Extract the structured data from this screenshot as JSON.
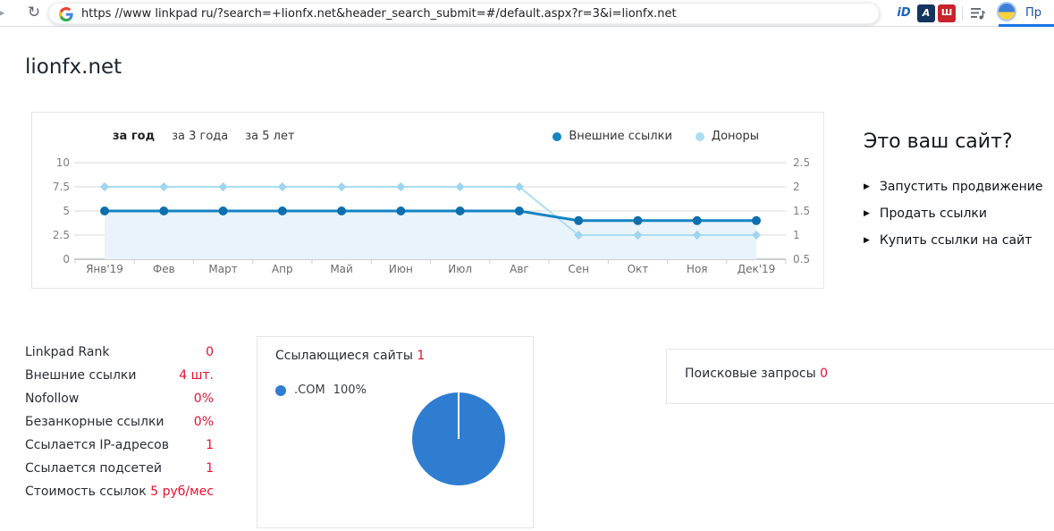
{
  "browser": {
    "url": "https //www linkpad ru/?search=+lionfx.net&header_search_submit=#/default.aspx?r=3&i=lionfx.net",
    "profile_label": "Пр",
    "extension_badge_id": "iD",
    "extension_badge_navy": "A",
    "extension_badge_red": "Ш"
  },
  "page": {
    "title": "lionfx.net"
  },
  "chart_panel": {
    "tabs": [
      {
        "label": "за год",
        "active": true
      },
      {
        "label": "за 3 года",
        "active": false
      },
      {
        "label": "за 5 лет",
        "active": false
      }
    ],
    "legend": [
      {
        "label": "Внешние ссылки",
        "color": "#1584c2"
      },
      {
        "label": "Доноры",
        "color": "#abddf3"
      }
    ]
  },
  "promo": {
    "heading": "Это ваш сайт?",
    "items": [
      "Запустить продвижение",
      "Продать ссылки",
      "Купить ссылки на сайт"
    ]
  },
  "stats": {
    "rows": [
      {
        "label": "Linkpad Rank",
        "value": "0"
      },
      {
        "label": "Внешние ссылки",
        "value": "4 шт."
      },
      {
        "label": "Nofollow",
        "value": "0%"
      },
      {
        "label": "Безанкорные ссылки",
        "value": "0%"
      },
      {
        "label": "Ссылается IP-адресов",
        "value": "1"
      },
      {
        "label": "Ссылается подсетей",
        "value": "1"
      },
      {
        "label": "Стоимость ссылок",
        "value": "5 руб/мес"
      }
    ]
  },
  "referring_sites": {
    "title": "Ссылающиеся сайты",
    "count": "1",
    "legend_label": ".COM",
    "legend_pct": "100%"
  },
  "search_queries": {
    "label": "Поисковые запросы",
    "count": "0"
  },
  "colors": {
    "accent_red": "#e8112d",
    "grid": "#dadada",
    "axis_line": "#9c9c9c",
    "axis_text": "#808080",
    "month_text": "#6b6b6b",
    "area_fill": "#e9f3fa"
  },
  "chart_data": [
    {
      "type": "line",
      "categories": [
        "Янв'19",
        "Фев",
        "Март",
        "Апр",
        "Май",
        "Июн",
        "Июл",
        "Авг",
        "Сен",
        "Окт",
        "Ноя",
        "Дек'19"
      ],
      "series": [
        {
          "name": "Внешние ссылки",
          "axis": "left",
          "color": "#1584c2",
          "marker_color": "#0d6fae",
          "marker": "circle",
          "width": 3,
          "area": true,
          "values": [
            5,
            5,
            5,
            5,
            5,
            5,
            5,
            5,
            4,
            4,
            4,
            4
          ]
        },
        {
          "name": "Доноры",
          "axis": "right",
          "color": "#abddf3",
          "marker_color": "#9fd5ee",
          "marker": "diamond",
          "width": 2,
          "area": false,
          "values": [
            2,
            2,
            2,
            2,
            2,
            2,
            2,
            2,
            1,
            1,
            1,
            1
          ]
        }
      ],
      "left_axis": {
        "min": 0,
        "max": 10,
        "ticks": [
          0,
          2.5,
          5,
          7.5,
          10
        ]
      },
      "right_axis": {
        "min": 0.5,
        "max": 2.5,
        "ticks": [
          0.5,
          1,
          1.5,
          2,
          2.5
        ]
      },
      "grid": true,
      "legend_position": "top-right",
      "title": ""
    },
    {
      "type": "pie",
      "title": "Ссылающиеся сайты",
      "total": 1,
      "slices": [
        {
          "label": ".COM",
          "pct": 100,
          "color": "#2e7dd1"
        }
      ]
    }
  ]
}
